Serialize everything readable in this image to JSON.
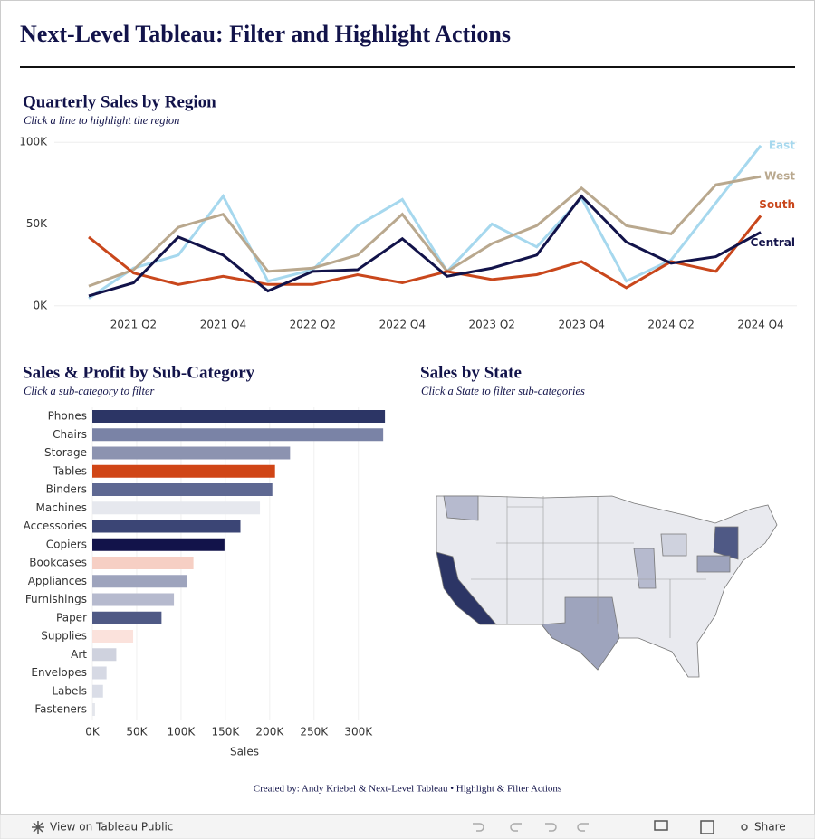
{
  "title": "Next-Level Tableau: Filter and Highlight Actions",
  "chart_data": [
    {
      "type": "line",
      "title": "Quarterly Sales by Region",
      "subtitle": "Click a line to highlight the region",
      "categories": [
        null,
        "2021 Q2",
        null,
        "2021 Q4",
        null,
        "2022 Q2",
        null,
        "2022 Q4",
        null,
        "2023 Q2",
        null,
        "2023 Q4",
        null,
        "2024 Q2",
        null,
        "2024 Q4"
      ],
      "series": [
        {
          "name": "East",
          "color": "#a6d8ee",
          "values": [
            4500,
            23000,
            31000,
            67000,
            15000,
            22000,
            49000,
            65000,
            21000,
            50000,
            36000,
            66000,
            15000,
            28000,
            63000,
            98000
          ]
        },
        {
          "name": "West",
          "color": "#b9a88e",
          "values": [
            12000,
            22000,
            48000,
            56000,
            21000,
            23000,
            31000,
            56000,
            21000,
            38000,
            49000,
            72000,
            49000,
            44000,
            74000,
            79000
          ]
        },
        {
          "name": "South",
          "color": "#c9471c",
          "values": [
            42000,
            20000,
            13000,
            18000,
            13000,
            13000,
            19000,
            14000,
            21000,
            16000,
            19000,
            27000,
            11000,
            27000,
            21000,
            55000
          ]
        },
        {
          "name": "Central",
          "color": "#12134a",
          "values": [
            6000,
            14000,
            42000,
            31000,
            9000,
            21000,
            22000,
            41000,
            18000,
            23000,
            31000,
            67000,
            39000,
            26000,
            30000,
            45000
          ]
        }
      ],
      "ylim": [
        -4000,
        104000
      ],
      "yticks": [
        {
          "value": 0,
          "label": "0K"
        },
        {
          "value": 50000,
          "label": "50K"
        },
        {
          "value": 100000,
          "label": "100K"
        }
      ],
      "grid": true
    },
    {
      "type": "hbar",
      "title": "Sales & Profit by Sub-Category",
      "subtitle": "Click a sub-category to filter",
      "categories": [
        "Phones",
        "Chairs",
        "Storage",
        "Tables",
        "Binders",
        "Machines",
        "Accessories",
        "Copiers",
        "Bookcases",
        "Appliances",
        "Furnishings",
        "Paper",
        "Supplies",
        "Art",
        "Envelopes",
        "Labels",
        "Fasteners"
      ],
      "values": [
        330000,
        328000,
        223000,
        206000,
        203000,
        189000,
        167000,
        149000,
        114000,
        107000,
        92000,
        78000,
        46000,
        27000,
        16000,
        12000,
        3000
      ],
      "colors": [
        "#2c3565",
        "#7a83a6",
        "#8c93b0",
        "#d04516",
        "#5e6892",
        "#e6e8ee",
        "#3b4575",
        "#12134a",
        "#f6cfc4",
        "#9ea4bd",
        "#b6bace",
        "#4f5985",
        "#fbe2dc",
        "#cfd2de",
        "#d6d9e4",
        "#dadde7",
        "#e4e6ec"
      ],
      "xlabel": "Sales",
      "xlim": [
        0,
        335000
      ],
      "xticks": [
        {
          "value": 0,
          "label": "0K"
        },
        {
          "value": 50000,
          "label": "50K"
        },
        {
          "value": 100000,
          "label": "100K"
        },
        {
          "value": 150000,
          "label": "150K"
        },
        {
          "value": 200000,
          "label": "200K"
        },
        {
          "value": 250000,
          "label": "250K"
        },
        {
          "value": 300000,
          "label": "300K"
        }
      ],
      "grid": true
    },
    {
      "type": "map",
      "title": "Sales by State",
      "subtitle": "Click a State to filter sub-categories"
    }
  ],
  "footer": "Created by: Andy Kriebel & Next-Level Tableau • Highlight & Filter Actions",
  "toolbar": {
    "view": "View on Tableau Public",
    "share": "Share"
  }
}
